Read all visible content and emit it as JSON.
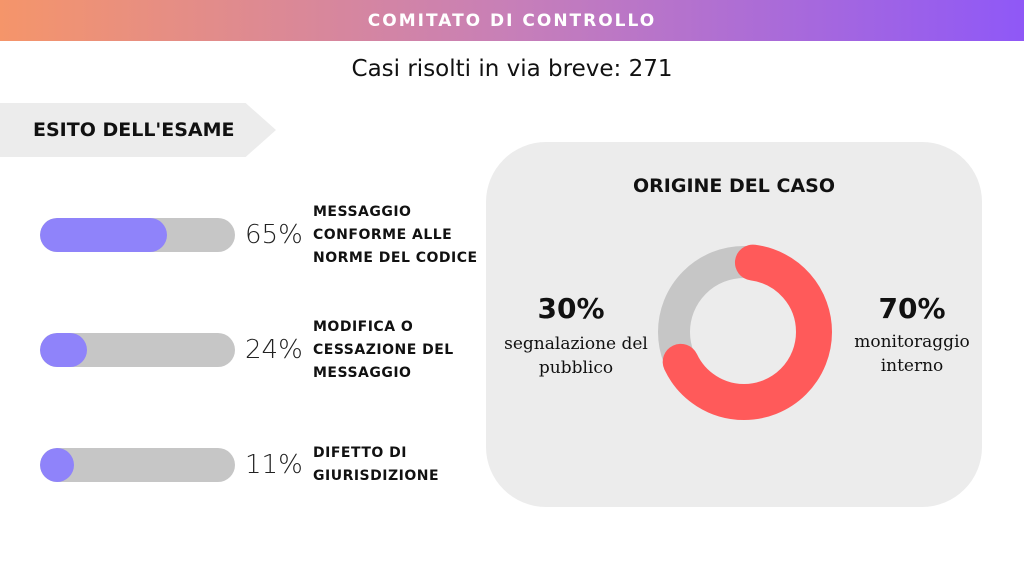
{
  "header": {
    "title": "COMITATO DI CONTROLLO"
  },
  "subtitle": "Casi risolti in via breve: 271",
  "section_tag": "ESITO DELL'ESAME",
  "panel_title": "ORIGINE DEL CASO",
  "colors": {
    "bar_fill": "#8f83fa",
    "bar_track": "#c6c6c6",
    "donut_primary": "#ff5a5a",
    "donut_secondary": "#c6c6c6",
    "panel_bg": "#ececec"
  },
  "chart_data": [
    {
      "type": "bar",
      "orientation": "horizontal",
      "unit": "%",
      "categories": [
        "MESSAGGIO CONFORME ALLE NORME DEL CODICE",
        "MODIFICA O CESSAZIONE DEL MESSAGGIO",
        "DIFETTO DI GIURISDIZIONE"
      ],
      "values": [
        65,
        24,
        11
      ],
      "labels": [
        "65%",
        "24%",
        "11%"
      ],
      "xlim": [
        0,
        100
      ]
    },
    {
      "type": "pie",
      "variant": "donut",
      "title": "ORIGINE DEL CASO",
      "slices": [
        {
          "name": "monitoraggio interno",
          "value": 70,
          "label": "70%"
        },
        {
          "name": "segnalazione del pubblico",
          "value": 30,
          "label": "30%"
        }
      ]
    }
  ]
}
